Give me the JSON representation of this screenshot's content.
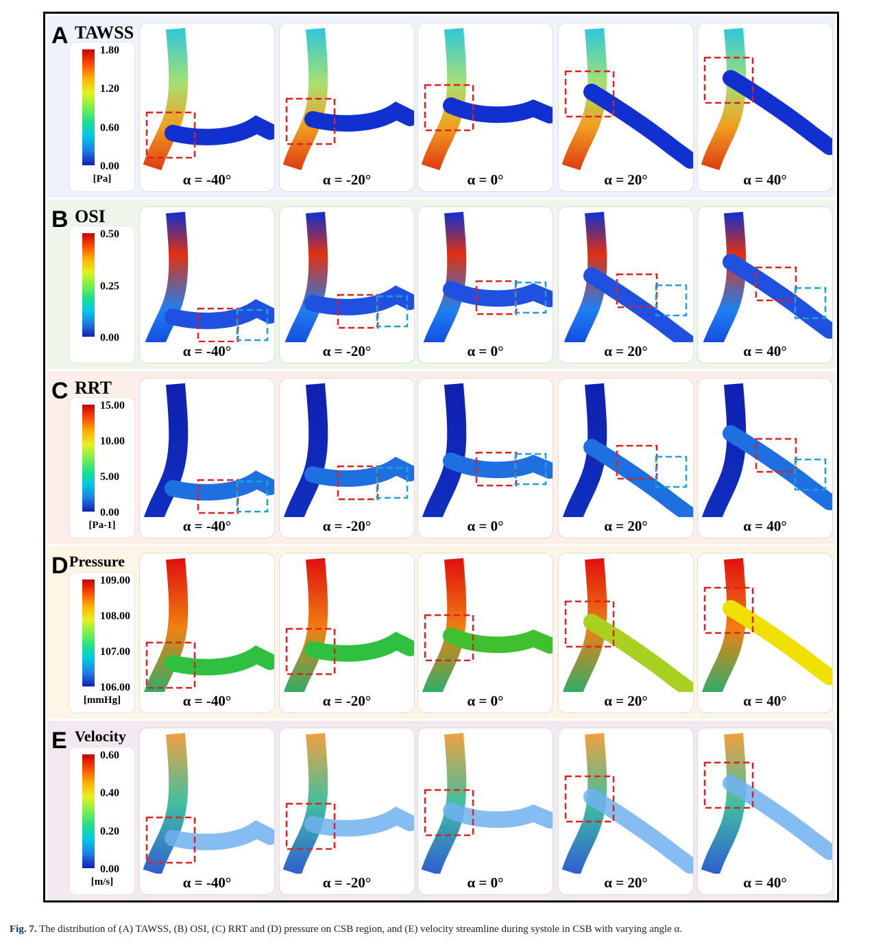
{
  "rows": [
    {
      "letter": "A",
      "title": "TAWSS",
      "ticks": [
        "1.80",
        "1.20",
        "0.60",
        "0.00"
      ],
      "unit": "[Pa]",
      "tint": "#eef2fb",
      "style": "tawss"
    },
    {
      "letter": "B",
      "title": "OSI",
      "ticks": [
        "0.50",
        "0.25",
        "0.00"
      ],
      "unit": "",
      "tint": "#eef6ec",
      "style": "osi"
    },
    {
      "letter": "C",
      "title": "RRT",
      "ticks": [
        "15.00",
        "10.00",
        "5.00",
        "0.00"
      ],
      "unit": "[Pa-1]",
      "tint": "#fcefea",
      "style": "rrt"
    },
    {
      "letter": "D",
      "title": "Pressure",
      "ticks": [
        "109.00",
        "108.00",
        "107.00",
        "106.00"
      ],
      "unit": "[mmHg]",
      "tint": "#fdf6e6",
      "style": "pressure"
    },
    {
      "letter": "E",
      "title": "Velocity",
      "ticks": [
        "0.60",
        "0.40",
        "0.20",
        "0.00"
      ],
      "unit": "[m/s]",
      "tint": "#f1e8f0",
      "style": "velocity"
    }
  ],
  "angles": [
    "α = -40°",
    "α = -20°",
    "α = 0°",
    "α = 20°",
    "α = 40°"
  ],
  "angle_values": [
    -40,
    -20,
    0,
    20,
    40
  ],
  "caption": {
    "label": "Fig. 7.",
    "text": " The distribution of (A) TAWSS, (B) OSI, (C) RRT and (D) pressure on CSB region, and (E) velocity streamline during systole in CSB with varying angle α."
  },
  "colors": {
    "highlight_red": "#e02020",
    "highlight_blue": "#1aa0e0"
  }
}
